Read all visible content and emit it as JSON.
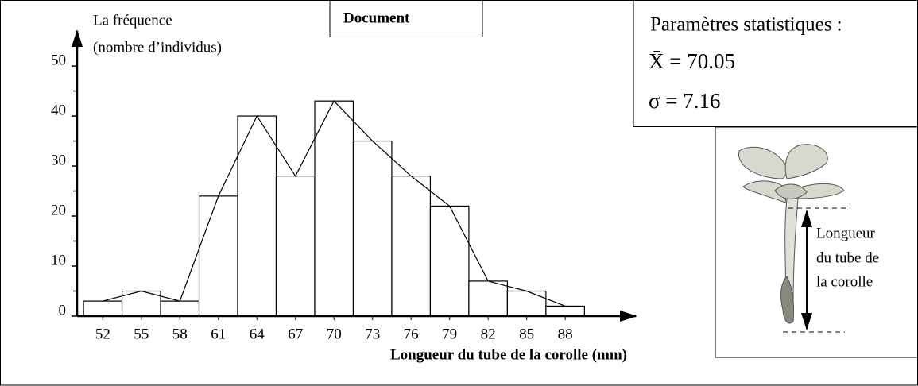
{
  "chart_data": {
    "type": "histogram",
    "ylabel": [
      "La fréquence",
      "(nombre d’individus)"
    ],
    "xlabel": "Longueur du tube de la corolle (mm)",
    "bins": [
      50.5,
      53.5,
      56.5,
      59.5,
      62.5,
      65.5,
      68.5,
      71.5,
      74.5,
      77.5,
      80.5,
      83.5,
      86.5,
      89.5
    ],
    "values": [
      3,
      5,
      3,
      24,
      40,
      28,
      43,
      35,
      28,
      22,
      7,
      5,
      2
    ],
    "xlim": [
      50,
      93.5
    ],
    "xticks": [
      52,
      55,
      58,
      61,
      64,
      67,
      70,
      73,
      76,
      79,
      82,
      85,
      88
    ],
    "ylim": [
      0,
      57
    ],
    "yticks": [
      0,
      10,
      20,
      30,
      40,
      50
    ],
    "minor_yticks": [
      5,
      15,
      25,
      35,
      45
    ],
    "color": "#ffffff",
    "frequency_polygon": true
  },
  "document_label": "Document",
  "stats": {
    "title": "Paramètres statistiques :",
    "mean": "X̄ = 70.05",
    "sd": "σ = 7.16"
  },
  "figure_label": [
    "Longueur",
    "du tube de",
    "la corolle"
  ]
}
